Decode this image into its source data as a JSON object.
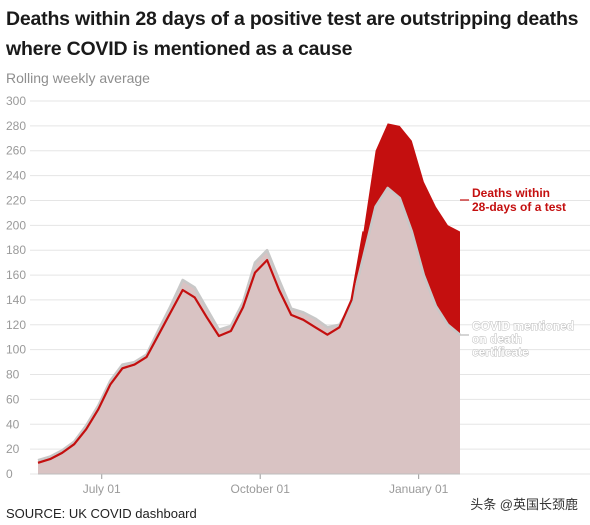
{
  "title": "Deaths within 28 days of a positive test are outstripping deaths where COVID is mentioned as a cause",
  "subtitle": "Rolling weekly average",
  "source": "SOURCE: UK COVID dashboard",
  "watermark": "头条 @英国长颈鹿",
  "colors": {
    "red": "#c40f0f",
    "fill": "#d9c3c3",
    "grey": "#c8c8c8",
    "grid": "#e5e5e5"
  },
  "chart_data": {
    "type": "area",
    "title": "Deaths within 28 days of a positive test are outstripping deaths where COVID is mentioned as a cause",
    "ylabel": "Rolling weekly average",
    "ylim": [
      0,
      300
    ],
    "yticks": [
      "0",
      "20",
      "40",
      "60",
      "80",
      "100",
      "120",
      "140",
      "160",
      "180",
      "200",
      "220",
      "240",
      "260",
      "280",
      "300"
    ],
    "xticks": [
      "July 01",
      "October 01",
      "January 01"
    ],
    "x": [
      "2020-05-25",
      "2020-06-01",
      "2020-06-08",
      "2020-06-15",
      "2020-06-22",
      "2020-06-29",
      "2020-07-06",
      "2020-07-13",
      "2020-07-20",
      "2020-07-27",
      "2020-08-03",
      "2020-08-10",
      "2020-08-17",
      "2020-08-24",
      "2020-08-31",
      "2020-09-07",
      "2020-09-14",
      "2020-09-21",
      "2020-09-28",
      "2020-10-05",
      "2020-10-12",
      "2020-10-19",
      "2020-10-26",
      "2020-11-02",
      "2020-11-09",
      "2020-11-16",
      "2020-11-23",
      "2020-11-30",
      "2020-12-07",
      "2020-12-14",
      "2020-12-21",
      "2020-12-28",
      "2021-01-04",
      "2021-01-11",
      "2021-01-18",
      "2021-01-25"
    ],
    "series": [
      {
        "name": "Deaths within 28-days of a test",
        "color": "#c40f0f",
        "values": [
          9,
          12,
          17,
          24,
          36,
          52,
          72,
          85,
          88,
          94,
          112,
          130,
          148,
          142,
          126,
          111,
          115,
          134,
          162,
          172,
          148,
          128,
          124,
          118,
          112,
          118,
          140,
          195,
          260,
          282,
          280,
          268,
          235,
          215,
          200,
          195
        ]
      },
      {
        "name": "COVID mentioned on death certificate",
        "color": "#c8c8c8",
        "values": [
          11,
          14,
          19,
          26,
          39,
          55,
          75,
          88,
          90,
          96,
          116,
          135,
          156,
          150,
          133,
          116,
          119,
          138,
          170,
          180,
          156,
          133,
          130,
          125,
          118,
          120,
          136,
          175,
          215,
          230,
          222,
          195,
          160,
          135,
          120,
          112
        ]
      }
    ]
  }
}
